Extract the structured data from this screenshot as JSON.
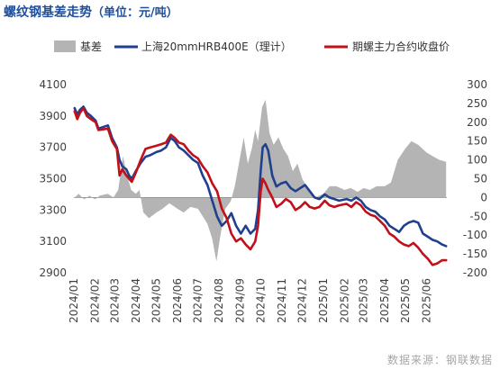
{
  "header": {
    "title": "螺纹钢基差走势",
    "unit": "（单位：元/吨）"
  },
  "footer": {
    "source": "数据来源：钢联数据"
  },
  "colors": {
    "basis": "#b4b4b4",
    "spot": "#1f3f8f",
    "futures": "#c0101a",
    "zero_line": "#8c8c8c"
  },
  "chart_data": {
    "type": "line",
    "legend_position": "top",
    "grid": false,
    "x_labels": [
      "2024/01",
      "2024/02",
      "2024/03",
      "2024/04",
      "2024/05",
      "2024/06",
      "2024/07",
      "2024/08",
      "2024/09",
      "2024/10",
      "2024/11",
      "2024/12",
      "2025/01",
      "2025/02",
      "2025/03",
      "2025/04",
      "2025/05",
      "2025/06"
    ],
    "x_range": [
      "2024/01",
      "2025/07"
    ],
    "y_left": {
      "min": 2900,
      "max": 4100,
      "ticks": [
        2900,
        3100,
        3300,
        3500,
        3700,
        3900,
        4100
      ]
    },
    "y_right": {
      "min": -200,
      "max": 300,
      "ticks": [
        -200,
        -150,
        -100,
        -50,
        0,
        50,
        100,
        150,
        200,
        250,
        300
      ]
    },
    "series": [
      {
        "name": "基差",
        "type": "area",
        "axis": "right",
        "points": [
          [
            "2024-01-02",
            0
          ],
          [
            "2024-01-08",
            10
          ],
          [
            "2024-01-16",
            -5
          ],
          [
            "2024-01-24",
            5
          ],
          [
            "2024-02-01",
            -5
          ],
          [
            "2024-02-08",
            5
          ],
          [
            "2024-02-20",
            10
          ],
          [
            "2024-02-28",
            0
          ],
          [
            "2024-03-06",
            20
          ],
          [
            "2024-03-13",
            110
          ],
          [
            "2024-03-18",
            65
          ],
          [
            "2024-03-25",
            20
          ],
          [
            "2024-04-01",
            10
          ],
          [
            "2024-04-06",
            20
          ],
          [
            "2024-04-12",
            -40
          ],
          [
            "2024-04-20",
            -55
          ],
          [
            "2024-05-01",
            -40
          ],
          [
            "2024-05-10",
            -30
          ],
          [
            "2024-05-20",
            -15
          ],
          [
            "2024-06-01",
            -30
          ],
          [
            "2024-06-10",
            -40
          ],
          [
            "2024-06-20",
            -25
          ],
          [
            "2024-07-01",
            -30
          ],
          [
            "2024-07-08",
            -50
          ],
          [
            "2024-07-15",
            -70
          ],
          [
            "2024-07-22",
            -110
          ],
          [
            "2024-07-28",
            -170
          ],
          [
            "2024-08-03",
            -100
          ],
          [
            "2024-08-10",
            -30
          ],
          [
            "2024-08-18",
            -10
          ],
          [
            "2024-08-24",
            30
          ],
          [
            "2024-09-01",
            110
          ],
          [
            "2024-09-06",
            160
          ],
          [
            "2024-09-12",
            90
          ],
          [
            "2024-09-18",
            130
          ],
          [
            "2024-09-23",
            180
          ],
          [
            "2024-09-27",
            150
          ],
          [
            "2024-10-03",
            240
          ],
          [
            "2024-10-08",
            260
          ],
          [
            "2024-10-14",
            170
          ],
          [
            "2024-10-20",
            140
          ],
          [
            "2024-10-27",
            160
          ],
          [
            "2024-11-03",
            130
          ],
          [
            "2024-11-10",
            110
          ],
          [
            "2024-11-17",
            70
          ],
          [
            "2024-11-24",
            90
          ],
          [
            "2024-12-01",
            50
          ],
          [
            "2024-12-10",
            20
          ],
          [
            "2024-12-20",
            0
          ],
          [
            "2025-01-01",
            10
          ],
          [
            "2025-01-10",
            30
          ],
          [
            "2025-01-20",
            30
          ],
          [
            "2025-02-01",
            20
          ],
          [
            "2025-02-10",
            25
          ],
          [
            "2025-02-20",
            15
          ],
          [
            "2025-03-01",
            25
          ],
          [
            "2025-03-10",
            20
          ],
          [
            "2025-03-20",
            30
          ],
          [
            "2025-04-01",
            30
          ],
          [
            "2025-04-10",
            40
          ],
          [
            "2025-04-20",
            100
          ],
          [
            "2025-05-01",
            130
          ],
          [
            "2025-05-10",
            150
          ],
          [
            "2025-05-20",
            140
          ],
          [
            "2025-06-01",
            120
          ],
          [
            "2025-06-10",
            110
          ],
          [
            "2025-06-20",
            100
          ],
          [
            "2025-06-30",
            95
          ]
        ]
      },
      {
        "name": "上海20mmHRB400E（理计）",
        "type": "line",
        "axis": "left",
        "points": [
          [
            "2024-01-02",
            3950
          ],
          [
            "2024-01-06",
            3910
          ],
          [
            "2024-01-10",
            3940
          ],
          [
            "2024-01-15",
            3960
          ],
          [
            "2024-01-20",
            3920
          ],
          [
            "2024-01-26",
            3900
          ],
          [
            "2024-02-02",
            3870
          ],
          [
            "2024-02-06",
            3820
          ],
          [
            "2024-02-20",
            3840
          ],
          [
            "2024-02-26",
            3760
          ],
          [
            "2024-03-04",
            3700
          ],
          [
            "2024-03-08",
            3620
          ],
          [
            "2024-03-12",
            3580
          ],
          [
            "2024-03-18",
            3560
          ],
          [
            "2024-03-22",
            3520
          ],
          [
            "2024-03-26",
            3500
          ],
          [
            "2024-04-01",
            3550
          ],
          [
            "2024-04-08",
            3600
          ],
          [
            "2024-04-15",
            3640
          ],
          [
            "2024-04-22",
            3650
          ],
          [
            "2024-05-01",
            3670
          ],
          [
            "2024-05-08",
            3680
          ],
          [
            "2024-05-15",
            3700
          ],
          [
            "2024-05-22",
            3760
          ],
          [
            "2024-05-28",
            3740
          ],
          [
            "2024-06-03",
            3700
          ],
          [
            "2024-06-10",
            3680
          ],
          [
            "2024-06-17",
            3650
          ],
          [
            "2024-06-24",
            3620
          ],
          [
            "2024-07-01",
            3600
          ],
          [
            "2024-07-08",
            3520
          ],
          [
            "2024-07-15",
            3460
          ],
          [
            "2024-07-22",
            3360
          ],
          [
            "2024-07-29",
            3260
          ],
          [
            "2024-08-05",
            3200
          ],
          [
            "2024-08-12",
            3230
          ],
          [
            "2024-08-19",
            3280
          ],
          [
            "2024-08-26",
            3200
          ],
          [
            "2024-09-02",
            3150
          ],
          [
            "2024-09-09",
            3200
          ],
          [
            "2024-09-16",
            3150
          ],
          [
            "2024-09-23",
            3180
          ],
          [
            "2024-09-27",
            3300
          ],
          [
            "2024-10-01",
            3550
          ],
          [
            "2024-10-04",
            3700
          ],
          [
            "2024-10-08",
            3720
          ],
          [
            "2024-10-12",
            3680
          ],
          [
            "2024-10-18",
            3520
          ],
          [
            "2024-10-24",
            3450
          ],
          [
            "2024-10-31",
            3470
          ],
          [
            "2024-11-07",
            3480
          ],
          [
            "2024-11-14",
            3440
          ],
          [
            "2024-11-21",
            3420
          ],
          [
            "2024-11-28",
            3440
          ],
          [
            "2024-12-05",
            3460
          ],
          [
            "2024-12-12",
            3420
          ],
          [
            "2024-12-19",
            3380
          ],
          [
            "2024-12-26",
            3370
          ],
          [
            "2025-01-03",
            3400
          ],
          [
            "2025-01-10",
            3380
          ],
          [
            "2025-01-17",
            3370
          ],
          [
            "2025-01-24",
            3360
          ],
          [
            "2025-02-04",
            3370
          ],
          [
            "2025-02-11",
            3360
          ],
          [
            "2025-02-18",
            3380
          ],
          [
            "2025-02-25",
            3360
          ],
          [
            "2025-03-04",
            3320
          ],
          [
            "2025-03-11",
            3300
          ],
          [
            "2025-03-18",
            3290
          ],
          [
            "2025-03-25",
            3260
          ],
          [
            "2025-04-01",
            3240
          ],
          [
            "2025-04-08",
            3200
          ],
          [
            "2025-04-15",
            3180
          ],
          [
            "2025-04-22",
            3160
          ],
          [
            "2025-04-29",
            3200
          ],
          [
            "2025-05-06",
            3220
          ],
          [
            "2025-05-13",
            3230
          ],
          [
            "2025-05-20",
            3220
          ],
          [
            "2025-05-27",
            3150
          ],
          [
            "2025-06-03",
            3130
          ],
          [
            "2025-06-10",
            3110
          ],
          [
            "2025-06-17",
            3100
          ],
          [
            "2025-06-24",
            3080
          ],
          [
            "2025-06-30",
            3070
          ]
        ]
      },
      {
        "name": "期螺主力合约收盘价",
        "type": "line",
        "axis": "left",
        "points": [
          [
            "2024-01-02",
            3930
          ],
          [
            "2024-01-06",
            3880
          ],
          [
            "2024-01-10",
            3920
          ],
          [
            "2024-01-15",
            3950
          ],
          [
            "2024-01-20",
            3900
          ],
          [
            "2024-01-26",
            3880
          ],
          [
            "2024-02-02",
            3860
          ],
          [
            "2024-02-06",
            3810
          ],
          [
            "2024-02-20",
            3820
          ],
          [
            "2024-02-26",
            3740
          ],
          [
            "2024-03-04",
            3690
          ],
          [
            "2024-03-08",
            3520
          ],
          [
            "2024-03-12",
            3560
          ],
          [
            "2024-03-18",
            3520
          ],
          [
            "2024-03-22",
            3500
          ],
          [
            "2024-03-26",
            3480
          ],
          [
            "2024-04-01",
            3540
          ],
          [
            "2024-04-08",
            3620
          ],
          [
            "2024-04-15",
            3690
          ],
          [
            "2024-04-22",
            3700
          ],
          [
            "2024-05-01",
            3710
          ],
          [
            "2024-05-08",
            3720
          ],
          [
            "2024-05-15",
            3730
          ],
          [
            "2024-05-22",
            3780
          ],
          [
            "2024-05-28",
            3760
          ],
          [
            "2024-06-03",
            3730
          ],
          [
            "2024-06-10",
            3720
          ],
          [
            "2024-06-17",
            3680
          ],
          [
            "2024-06-24",
            3650
          ],
          [
            "2024-07-01",
            3630
          ],
          [
            "2024-07-08",
            3580
          ],
          [
            "2024-07-15",
            3540
          ],
          [
            "2024-07-22",
            3470
          ],
          [
            "2024-07-29",
            3420
          ],
          [
            "2024-08-05",
            3310
          ],
          [
            "2024-08-12",
            3250
          ],
          [
            "2024-08-19",
            3150
          ],
          [
            "2024-08-26",
            3100
          ],
          [
            "2024-09-02",
            3120
          ],
          [
            "2024-09-09",
            3080
          ],
          [
            "2024-09-16",
            3050
          ],
          [
            "2024-09-23",
            3100
          ],
          [
            "2024-09-27",
            3200
          ],
          [
            "2024-10-01",
            3420
          ],
          [
            "2024-10-04",
            3500
          ],
          [
            "2024-10-08",
            3470
          ],
          [
            "2024-10-12",
            3430
          ],
          [
            "2024-10-18",
            3380
          ],
          [
            "2024-10-24",
            3320
          ],
          [
            "2024-10-31",
            3340
          ],
          [
            "2024-11-07",
            3370
          ],
          [
            "2024-11-14",
            3350
          ],
          [
            "2024-11-21",
            3300
          ],
          [
            "2024-11-28",
            3320
          ],
          [
            "2024-12-05",
            3350
          ],
          [
            "2024-12-12",
            3320
          ],
          [
            "2024-12-19",
            3310
          ],
          [
            "2024-12-26",
            3320
          ],
          [
            "2025-01-03",
            3360
          ],
          [
            "2025-01-10",
            3330
          ],
          [
            "2025-01-17",
            3320
          ],
          [
            "2025-01-24",
            3330
          ],
          [
            "2025-02-04",
            3340
          ],
          [
            "2025-02-11",
            3320
          ],
          [
            "2025-02-18",
            3350
          ],
          [
            "2025-02-25",
            3330
          ],
          [
            "2025-03-04",
            3290
          ],
          [
            "2025-03-11",
            3270
          ],
          [
            "2025-03-18",
            3260
          ],
          [
            "2025-03-25",
            3230
          ],
          [
            "2025-04-01",
            3200
          ],
          [
            "2025-04-08",
            3150
          ],
          [
            "2025-04-15",
            3130
          ],
          [
            "2025-04-22",
            3100
          ],
          [
            "2025-04-29",
            3080
          ],
          [
            "2025-05-06",
            3070
          ],
          [
            "2025-05-13",
            3090
          ],
          [
            "2025-05-20",
            3060
          ],
          [
            "2025-05-27",
            3020
          ],
          [
            "2025-06-03",
            2990
          ],
          [
            "2025-06-10",
            2950
          ],
          [
            "2025-06-17",
            2960
          ],
          [
            "2025-06-24",
            2980
          ],
          [
            "2025-06-30",
            2980
          ]
        ]
      }
    ]
  }
}
